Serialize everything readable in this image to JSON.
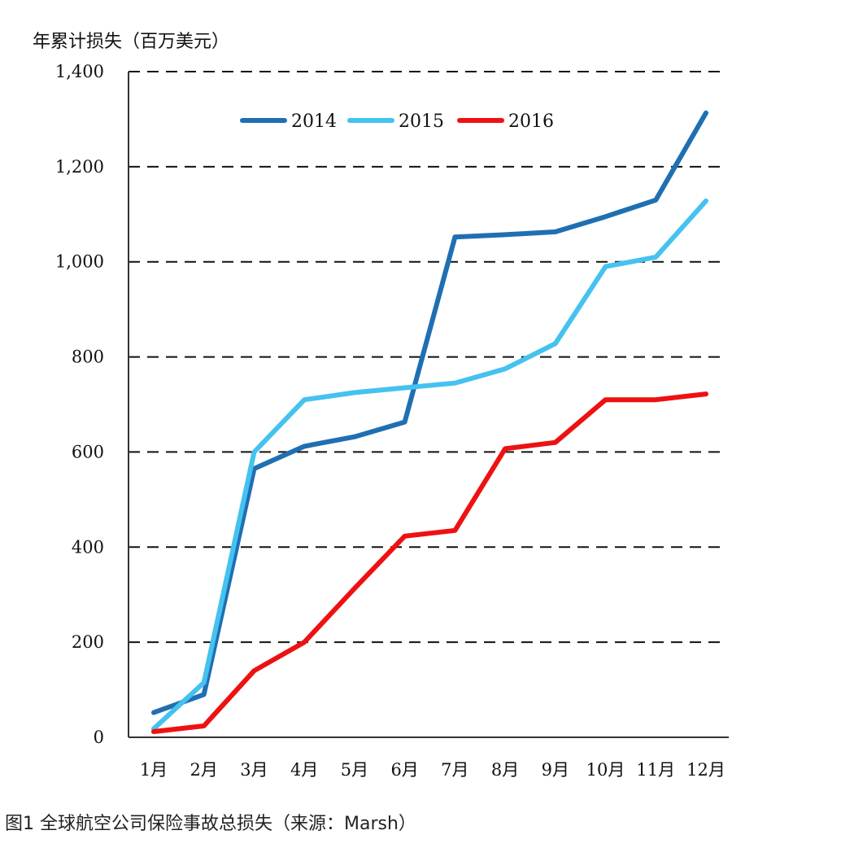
{
  "caption": "图1 全球航空公司保险事故总损失（来源：Marsh）",
  "chart_data": {
    "type": "line",
    "ylabel": "年累计损失（百万美元）",
    "categories": [
      "1月",
      "2月",
      "3月",
      "4月",
      "5月",
      "6月",
      "7月",
      "8月",
      "9月",
      "10月",
      "11月",
      "12月"
    ],
    "y_tick_labels": [
      "0",
      "200",
      "400",
      "600",
      "800",
      "1,000",
      "1,200",
      "1,400"
    ],
    "ylim": [
      0,
      1400
    ],
    "grid": "dashed horizontal",
    "legend_position": "top-center",
    "series": [
      {
        "name": "2014",
        "color": "#1f6fb2",
        "values": [
          52,
          90,
          565,
          612,
          632,
          663,
          1052,
          1057,
          1063,
          1095,
          1130,
          1313
        ]
      },
      {
        "name": "2015",
        "color": "#45c2ef",
        "values": [
          18,
          115,
          600,
          710,
          725,
          735,
          745,
          775,
          828,
          990,
          1010,
          1128
        ]
      },
      {
        "name": "2016",
        "color": "#ee1111",
        "values": [
          12,
          24,
          140,
          200,
          313,
          423,
          435,
          607,
          620,
          710,
          710,
          722
        ]
      }
    ]
  }
}
